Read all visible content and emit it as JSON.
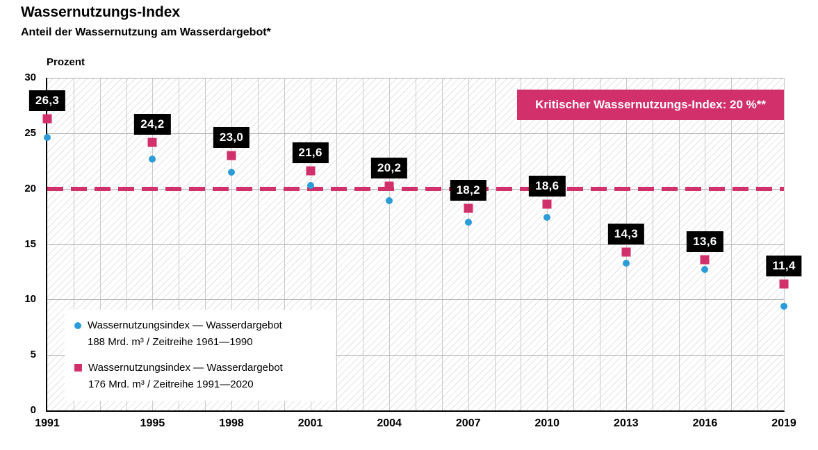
{
  "chart_data": {
    "type": "scatter",
    "title": "Wassernutzungs-Index",
    "subtitle": "Anteil der Wassernutzung am Wasserdargebot*",
    "ylabel": "Prozent",
    "x": [
      1991,
      1995,
      1998,
      2001,
      2004,
      2007,
      2010,
      2013,
      2016,
      2019
    ],
    "xlim": [
      1991,
      2019
    ],
    "ylim": [
      0,
      30
    ],
    "yticks": [
      0,
      5,
      10,
      15,
      20,
      25,
      30
    ],
    "grid": true,
    "background_hatch": true,
    "critical_line": 20,
    "critical_line_label": "Kritischer Wassernutzungs-Index: 20 %**",
    "legend_position": "inside-lower-left",
    "series": [
      {
        "name": "Wassernutzungsindex — Wasserdargebot 188 Mrd. m³ / Zeitreihe 1961—1990",
        "marker": "circle",
        "color": "#2b9cd8",
        "values": [
          24.6,
          22.7,
          21.5,
          20.3,
          18.9,
          17.0,
          17.4,
          13.3,
          12.7,
          9.4
        ]
      },
      {
        "name": "Wassernutzungsindex — Wasserdargebot 176 Mrd. m³ / Zeitreihe 1991—2020",
        "marker": "square",
        "color": "#d2306a",
        "values": [
          26.3,
          24.2,
          23.0,
          21.6,
          20.2,
          18.2,
          18.6,
          14.3,
          13.6,
          11.4
        ],
        "labels": [
          "26,3",
          "24,2",
          "23,0",
          "21,6",
          "20,2",
          "18,2",
          "18,6",
          "14,3",
          "13,6",
          "11,4"
        ]
      }
    ],
    "legend": {
      "entries": [
        {
          "line1": "Wassernutzungsindex — Wasserdargebot",
          "line2": "188 Mrd. m³ / Zeitreihe 1961—1990"
        },
        {
          "line1": "Wassernutzungsindex — Wasserdargebot",
          "line2": "176 Mrd. m³ / Zeitreihe 1991—2020"
        }
      ]
    },
    "colors": {
      "series_blue": "#2b9cd8",
      "series_pink": "#d2306a",
      "value_label_bg": "#000000",
      "value_label_text": "#ffffff"
    }
  }
}
